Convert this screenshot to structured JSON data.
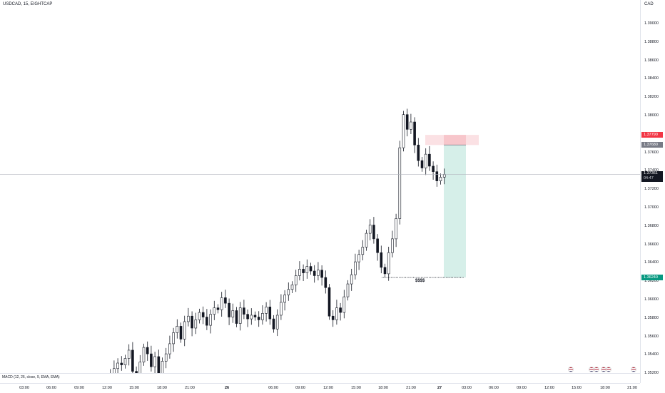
{
  "header": {
    "symbol_title": "USDCAD, 15, EIGHTCAP"
  },
  "price_axis": {
    "currency": "CAD",
    "ticks": [
      "1.39000",
      "1.38800",
      "1.38600",
      "1.38400",
      "1.38200",
      "1.38000",
      "1.37600",
      "1.37400",
      "1.37200",
      "1.37000",
      "1.36800",
      "1.36600",
      "1.36400",
      "1.36200",
      "1.36000",
      "1.35800",
      "1.35600",
      "1.35400",
      "1.35200"
    ],
    "tags": {
      "stop": "1.37790",
      "entry": "1.37680",
      "current": "1.37361",
      "countdown": "04:47",
      "target": "1.36240"
    }
  },
  "time_axis": {
    "ticks": [
      {
        "label": "03:00",
        "bold": false
      },
      {
        "label": "06:00",
        "bold": false
      },
      {
        "label": "09:00",
        "bold": false
      },
      {
        "label": "12:00",
        "bold": false
      },
      {
        "label": "15:00",
        "bold": false
      },
      {
        "label": "18:00",
        "bold": false
      },
      {
        "label": "21:00",
        "bold": false
      },
      {
        "label": "26",
        "bold": true
      },
      {
        "label": "06:00",
        "bold": false
      },
      {
        "label": "09:00",
        "bold": false
      },
      {
        "label": "12:00",
        "bold": false
      },
      {
        "label": "15:00",
        "bold": false
      },
      {
        "label": "18:00",
        "bold": false
      },
      {
        "label": "21:00",
        "bold": false
      },
      {
        "label": "27",
        "bold": true
      },
      {
        "label": "03:00",
        "bold": false
      },
      {
        "label": "06:00",
        "bold": false
      },
      {
        "label": "09:00",
        "bold": false
      },
      {
        "label": "12:00",
        "bold": false
      },
      {
        "label": "15:00",
        "bold": false
      },
      {
        "label": "18:00",
        "bold": false
      },
      {
        "label": "21:00",
        "bold": false
      }
    ]
  },
  "indicator": {
    "macd_label": "MACD (12, 26, close, 9, EMA, EMA)"
  },
  "annotation": {
    "target_label": "$$$$"
  },
  "colors": {
    "up": "#ffffff",
    "down": "#131722",
    "wick": "#131722",
    "stop_zone": "#f7c6cb",
    "target_zone": "#d6efe9",
    "stop_tag": "#f23645",
    "entry_tag": "#787b86",
    "current_tag": "#131722",
    "target_tag": "#089981"
  },
  "chart_data": {
    "type": "candlestick",
    "title": "USDCAD, 15, EIGHTCAP",
    "ylim": [
      1.351,
      1.3915
    ],
    "trade_position": {
      "entry": 1.3768,
      "stop": 1.3779,
      "target": 1.3624
    },
    "current_price": 1.37361,
    "series_close": [
      1.3512,
      1.3518,
      1.3525,
      1.3531,
      1.3529,
      1.3536,
      1.3545,
      1.3522,
      1.3515,
      1.3532,
      1.3548,
      1.3541,
      1.3527,
      1.3538,
      1.3519,
      1.3533,
      1.3541,
      1.3552,
      1.3564,
      1.3571,
      1.3557,
      1.3576,
      1.3582,
      1.3569,
      1.3578,
      1.3586,
      1.3581,
      1.3572,
      1.3584,
      1.3591,
      1.3589,
      1.3602,
      1.3596,
      1.3581,
      1.3588,
      1.3574,
      1.3591,
      1.3584,
      1.3579,
      1.3583,
      1.3581,
      1.3578,
      1.3585,
      1.3592,
      1.3579,
      1.3568,
      1.3583,
      1.3597,
      1.3605,
      1.3611,
      1.3616,
      1.3626,
      1.3633,
      1.3629,
      1.3636,
      1.3631,
      1.3626,
      1.3632,
      1.3624,
      1.3613,
      1.3582,
      1.3578,
      1.3591,
      1.3586,
      1.3603,
      1.3617,
      1.3627,
      1.3641,
      1.3649,
      1.3657,
      1.3672,
      1.3681,
      1.3666,
      1.3651,
      1.3635,
      1.3628,
      1.3651,
      1.3666,
      1.3688,
      1.3765,
      1.3801,
      1.3785,
      1.3793,
      1.3768,
      1.3751,
      1.3743,
      1.3758,
      1.3745,
      1.3739,
      1.3729,
      1.3733,
      1.3736
    ]
  }
}
